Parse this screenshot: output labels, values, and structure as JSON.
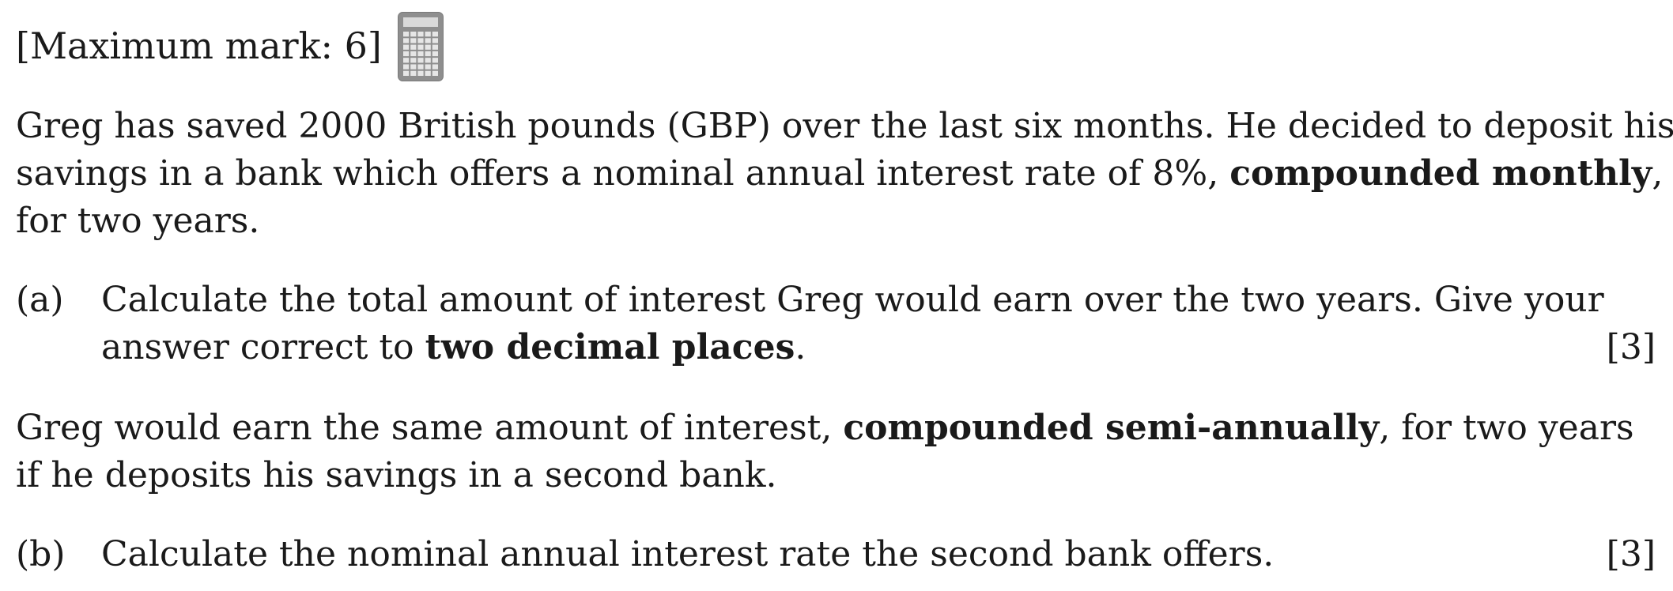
{
  "header": {
    "max_mark": "[Maximum mark: 6]",
    "calculator_icon": "calculator-icon"
  },
  "intro": {
    "line1": "Greg has saved 2000 British pounds (GBP) over the last six months. He decided to deposit his",
    "line2_pre": "savings in a bank which offers a nominal annual interest rate of 8%, ",
    "line2_bold": "compounded monthly",
    "line2_post": ",",
    "line3": "for two years."
  },
  "part_a": {
    "label": "(a)",
    "line1": "Calculate the total amount of interest Greg would earn over the two years. Give your",
    "line2_pre": "answer correct to ",
    "line2_bold": "two decimal places",
    "line2_post": ".",
    "marks": "[3]"
  },
  "middle": {
    "line1_pre": "Greg would earn the same amount of interest, ",
    "line1_bold": "compounded semi-annually",
    "line1_post": ", for two years",
    "line2": "if he deposits his savings in a second bank."
  },
  "part_b": {
    "label": "(b)",
    "text": "Calculate the nominal annual interest rate the second bank offers.",
    "marks": "[3]"
  }
}
